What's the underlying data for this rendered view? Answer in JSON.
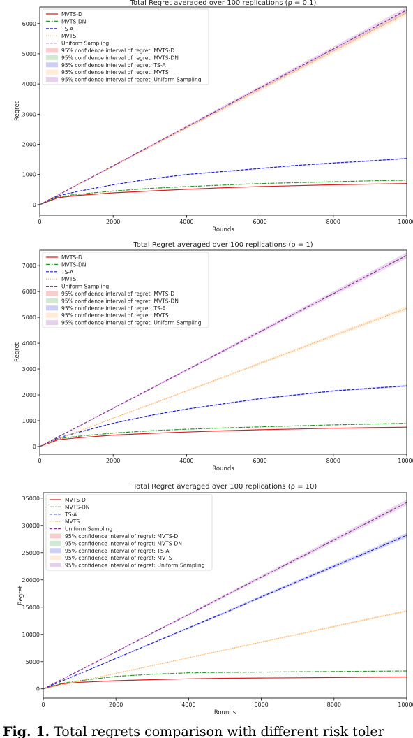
{
  "caption": {
    "label": "Fig. 1.",
    "text": "Total regrets comparison with different risk toler"
  },
  "colors": {
    "MVTS-D": "#e4191b",
    "MVTS-DN": "#2a9a2a",
    "TS-A": "#1f1fdc",
    "MVTS": "#ffa64d",
    "Uniform Sampling": "#8e2ea0"
  },
  "chart_data": [
    {
      "type": "line",
      "title": "Total Regret averaged over 100 replications (ρ = 0.1)",
      "xlabel": "Rounds",
      "ylabel": "Regret",
      "xlim": [
        0,
        10000
      ],
      "ylim": [
        -350,
        6550
      ],
      "xticks": [
        0,
        2000,
        4000,
        6000,
        8000,
        10000
      ],
      "xticklabels": [
        "0",
        "2000",
        "4000",
        "6000",
        "8000",
        "10000"
      ],
      "yticks": [
        0,
        1000,
        2000,
        3000,
        4000,
        5000,
        6000
      ],
      "yticklabels": [
        "0",
        "1000",
        "2000",
        "3000",
        "4000",
        "5000",
        "6000"
      ],
      "grid": false,
      "legend_position": "upper-left",
      "x": [
        0,
        500,
        1000,
        2000,
        3000,
        4000,
        5000,
        6000,
        7000,
        8000,
        9000,
        10000
      ],
      "series": [
        {
          "name": "MVTS-D",
          "style": "solid",
          "values": [
            0,
            230,
            300,
            390,
            450,
            510,
            560,
            600,
            630,
            660,
            680,
            700
          ]
        },
        {
          "name": "MVTS-DN",
          "style": "dashdot",
          "values": [
            0,
            260,
            340,
            450,
            540,
            600,
            650,
            700,
            730,
            760,
            790,
            810
          ]
        },
        {
          "name": "TS-A",
          "style": "dashed",
          "values": [
            0,
            290,
            430,
            660,
            850,
            1000,
            1100,
            1200,
            1300,
            1380,
            1450,
            1530
          ]
        },
        {
          "name": "MVTS",
          "style": "dotted",
          "values": [
            0,
            320,
            640,
            1270,
            1910,
            2540,
            3180,
            3810,
            4450,
            5080,
            5720,
            6350
          ]
        },
        {
          "name": "Uniform Sampling",
          "style": "dashed",
          "values": [
            0,
            320,
            645,
            1290,
            1935,
            2580,
            3225,
            3870,
            4515,
            5160,
            5805,
            6450
          ]
        }
      ],
      "legend": [
        "MVTS-D",
        "MVTS-DN",
        "TS-A",
        "MVTS",
        "Uniform Sampling",
        "95% confidence interval of regret: MVTS-D",
        "95% confidence interval of regret: MVTS-DN",
        "95% confidence interval of regret: TS-A",
        "95% confidence interval of regret: MVTS",
        "95% confidence interval of regret: Uniform Sampling"
      ]
    },
    {
      "type": "line",
      "title": "Total Regret averaged over 100 replications (ρ = 1)",
      "xlabel": "Rounds",
      "ylabel": "Regret",
      "xlim": [
        0,
        10000
      ],
      "ylim": [
        -300,
        7600
      ],
      "xticks": [
        0,
        2000,
        4000,
        6000,
        8000,
        10000
      ],
      "xticklabels": [
        "0",
        "2000",
        "4000",
        "6000",
        "8000",
        "10000"
      ],
      "yticks": [
        0,
        1000,
        2000,
        3000,
        4000,
        5000,
        6000,
        7000
      ],
      "yticklabels": [
        "0",
        "1000",
        "2000",
        "3000",
        "4000",
        "5000",
        "6000",
        "7000"
      ],
      "grid": false,
      "legend_position": "upper-left",
      "x": [
        0,
        500,
        1000,
        2000,
        3000,
        4000,
        5000,
        6000,
        7000,
        8000,
        9000,
        10000
      ],
      "series": [
        {
          "name": "MVTS-D",
          "style": "solid",
          "values": [
            0,
            260,
            330,
            440,
            510,
            560,
            610,
            650,
            680,
            710,
            730,
            750
          ]
        },
        {
          "name": "MVTS-DN",
          "style": "dashdot",
          "values": [
            0,
            300,
            390,
            520,
            610,
            670,
            720,
            760,
            800,
            840,
            870,
            900
          ]
        },
        {
          "name": "TS-A",
          "style": "dashed",
          "values": [
            0,
            330,
            530,
            900,
            1200,
            1450,
            1650,
            1850,
            2000,
            2150,
            2250,
            2350
          ]
        },
        {
          "name": "MVTS",
          "style": "dotted",
          "values": [
            0,
            300,
            560,
            1100,
            1620,
            2150,
            2680,
            3220,
            3750,
            4290,
            4820,
            5350
          ]
        },
        {
          "name": "Uniform Sampling",
          "style": "dashed",
          "values": [
            0,
            370,
            740,
            1480,
            2220,
            2960,
            3700,
            4440,
            5180,
            5920,
            6660,
            7400
          ]
        }
      ],
      "legend": [
        "MVTS-D",
        "MVTS-DN",
        "TS-A",
        "MVTS",
        "Uniform Sampling",
        "95% confidence interval of regret: MVTS-D",
        "95% confidence interval of regret: MVTS-DN",
        "95% confidence interval of regret: TS-A",
        "95% confidence interval of regret: MVTS",
        "95% confidence interval of regret: Uniform Sampling"
      ]
    },
    {
      "type": "line",
      "title": "Total Regret averaged over 100 replications (ρ = 10)",
      "xlabel": "Rounds",
      "ylabel": "Regret",
      "xlim": [
        0,
        10000
      ],
      "ylim": [
        -1700,
        36000
      ],
      "xticks": [
        0,
        2000,
        4000,
        6000,
        8000,
        10000
      ],
      "xticklabels": [
        "0",
        "2000",
        "4000",
        "6000",
        "8000",
        "10000"
      ],
      "yticks": [
        0,
        5000,
        10000,
        15000,
        20000,
        25000,
        30000,
        35000
      ],
      "yticklabels": [
        "0",
        "5000",
        "10000",
        "15000",
        "20000",
        "25000",
        "30000",
        "35000"
      ],
      "grid": false,
      "legend_position": "upper-left",
      "x": [
        0,
        500,
        1000,
        2000,
        3000,
        4000,
        5000,
        6000,
        7000,
        8000,
        9000,
        10000
      ],
      "series": [
        {
          "name": "MVTS-D",
          "style": "solid",
          "values": [
            0,
            900,
            1200,
            1500,
            1700,
            1850,
            1950,
            2000,
            2050,
            2100,
            2150,
            2200
          ]
        },
        {
          "name": "MVTS-DN",
          "style": "dashdot",
          "values": [
            0,
            1000,
            1500,
            2300,
            2700,
            2950,
            3050,
            3100,
            3150,
            3200,
            3250,
            3300
          ]
        },
        {
          "name": "TS-A",
          "style": "dashed",
          "values": [
            0,
            1400,
            2800,
            5600,
            8400,
            11200,
            14000,
            16900,
            19700,
            22500,
            25300,
            28200
          ]
        },
        {
          "name": "MVTS",
          "style": "dotted",
          "values": [
            0,
            720,
            1430,
            2860,
            4290,
            5720,
            7150,
            8580,
            10000,
            11450,
            12880,
            14300
          ]
        },
        {
          "name": "Uniform Sampling",
          "style": "dashed",
          "values": [
            0,
            1700,
            3400,
            6800,
            10250,
            13650,
            17100,
            20500,
            23900,
            27350,
            30750,
            34200
          ]
        }
      ],
      "legend": [
        "MVTS-D",
        "MVTS-DN",
        "TS-A",
        "MVTS",
        "Uniform Sampling",
        "95% confidence interval of regret: MVTS-D",
        "95% confidence interval of regret: MVTS-DN",
        "95% confidence interval of regret: TS-A",
        "95% confidence interval of regret: MVTS",
        "95% confidence interval of regret: Uniform Sampling"
      ]
    }
  ]
}
